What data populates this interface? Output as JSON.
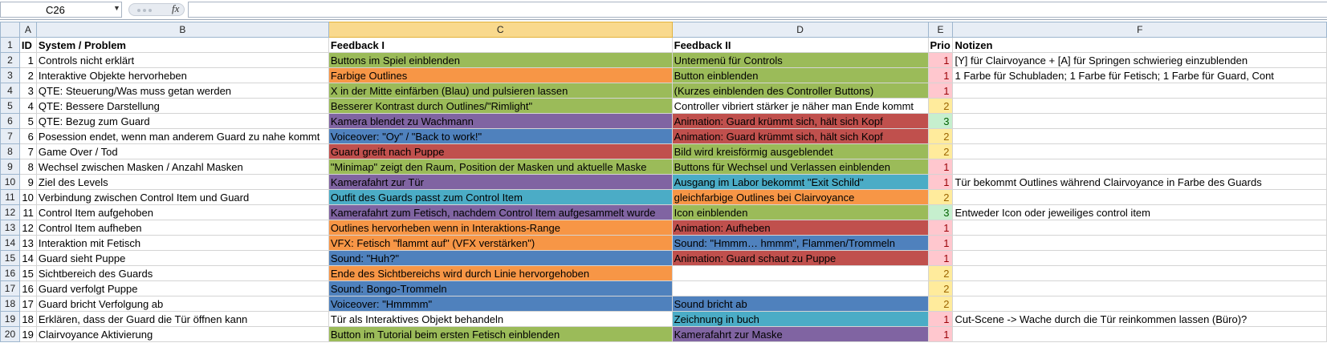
{
  "formula_bar": {
    "cell_ref": "C26",
    "fx_label": "fx",
    "formula": ""
  },
  "columns": [
    "A",
    "B",
    "C",
    "D",
    "E",
    "F"
  ],
  "active_column": "C",
  "header_row": {
    "id": "ID",
    "system": "System / Problem",
    "feedback1": "Feedback I",
    "feedback2": "Feedback II",
    "prio": "Prio",
    "notes": "Notizen"
  },
  "rows": [
    {
      "n": "2",
      "id": "1",
      "system": "Controls nicht erklärt",
      "feedback1": "Buttons im Spiel einblenden",
      "f1_color": "green",
      "feedback2": "Untermenü für Controls",
      "f2_color": "green",
      "prio": "1",
      "notes": "[Y] für Clairvoyance + [A] für Springen schwierieg einzublenden"
    },
    {
      "n": "3",
      "id": "2",
      "system": "Interaktive Objekte hervorheben",
      "feedback1": "Farbige Outlines",
      "f1_color": "orange",
      "feedback2": "Button einblenden",
      "f2_color": "green",
      "prio": "1",
      "notes": "1 Farbe für Schubladen; 1 Farbe für Fetisch; 1 Farbe für Guard, Cont"
    },
    {
      "n": "4",
      "id": "3",
      "system": "QTE: Steuerung/Was muss getan werden",
      "feedback1": "X in der Mitte einfärben (Blau) und pulsieren lassen",
      "f1_color": "green",
      "feedback2": "(Kurzes einblenden des Controller Buttons)",
      "f2_color": "green",
      "prio": "1",
      "notes": ""
    },
    {
      "n": "5",
      "id": "4",
      "system": "QTE: Bessere Darstellung",
      "feedback1": "Besserer Kontrast durch Outlines/\"Rimlight\"",
      "f1_color": "green",
      "feedback2": "Controller vibriert stärker je näher man Ende kommt",
      "f2_color": "",
      "prio": "2",
      "notes": ""
    },
    {
      "n": "6",
      "id": "5",
      "system": "QTE: Bezug zum Guard",
      "feedback1": "Kamera blendet zu Wachmann",
      "f1_color": "purple",
      "feedback2": "Animation: Guard krümmt sich, hält sich Kopf",
      "f2_color": "red",
      "prio": "3",
      "notes": ""
    },
    {
      "n": "7",
      "id": "6",
      "system": "Posession endet, wenn man anderem Guard zu nahe kommt",
      "feedback1": "Voiceover: \"Oy\" / \"Back to work!\"",
      "f1_color": "blue",
      "feedback2": "Animation: Guard krümmt sich, hält sich Kopf",
      "f2_color": "red",
      "prio": "2",
      "notes": ""
    },
    {
      "n": "8",
      "id": "7",
      "system": "Game Over / Tod",
      "feedback1": "Guard greift nach Puppe",
      "f1_color": "red",
      "feedback2": "Bild wird kreisförmig ausgeblendet",
      "f2_color": "green",
      "prio": "2",
      "notes": ""
    },
    {
      "n": "9",
      "id": "8",
      "system": "Wechsel zwischen Masken / Anzahl Masken",
      "feedback1": "\"Minimap\" zeigt den Raum, Position der Masken und aktuelle Maske",
      "f1_color": "green",
      "feedback2": "Buttons für Wechsel und Verlassen einblenden",
      "f2_color": "green",
      "prio": "1",
      "notes": ""
    },
    {
      "n": "10",
      "id": "9",
      "system": "Ziel des Levels",
      "feedback1": "Kamerafahrt zur Tür",
      "f1_color": "purple",
      "feedback2": "Ausgang im Labor bekommt \"Exit Schild\"",
      "f2_color": "teal",
      "prio": "1",
      "notes": "Tür bekommt Outlines während Clairvoyance in Farbe des Guards"
    },
    {
      "n": "11",
      "id": "10",
      "system": "Verbindung zwischen Control Item und Guard",
      "feedback1": "Outfit des Guards passt zum Control Item",
      "f1_color": "teal",
      "feedback2": "gleichfarbige Outlines bei Clairvoyance",
      "f2_color": "orange",
      "prio": "2",
      "notes": ""
    },
    {
      "n": "12",
      "id": "11",
      "system": "Control Item aufgehoben",
      "feedback1": "Kamerafahrt zum Fetisch, nachdem Control Item aufgesammelt wurde",
      "f1_color": "purple",
      "feedback2": "Icon einblenden",
      "f2_color": "green",
      "prio": "3",
      "notes": "Entweder Icon oder jeweiliges control item"
    },
    {
      "n": "13",
      "id": "12",
      "system": "Control Item aufheben",
      "feedback1": "Outlines hervorheben wenn in Interaktions-Range",
      "f1_color": "orange",
      "feedback2": "Animation: Aufheben",
      "f2_color": "red",
      "prio": "1",
      "notes": ""
    },
    {
      "n": "14",
      "id": "13",
      "system": "Interaktion mit Fetisch",
      "feedback1": "VFX: Fetisch \"flammt auf\" (VFX verstärken\")",
      "f1_color": "orange",
      "feedback2": "Sound: \"Hmmm… hmmm\", Flammen/Trommeln",
      "f2_color": "blue",
      "prio": "1",
      "notes": ""
    },
    {
      "n": "15",
      "id": "14",
      "system": "Guard sieht Puppe",
      "feedback1": "Sound: \"Huh?\"",
      "f1_color": "blue",
      "feedback2": "Animation: Guard schaut zu Puppe",
      "f2_color": "red",
      "prio": "1",
      "notes": ""
    },
    {
      "n": "16",
      "id": "15",
      "system": "Sichtbereich des Guards",
      "feedback1": "Ende des Sichtbereichs wird durch Linie hervorgehoben",
      "f1_color": "orange",
      "feedback2": "",
      "f2_color": "",
      "prio": "2",
      "notes": ""
    },
    {
      "n": "17",
      "id": "16",
      "system": "Guard verfolgt Puppe",
      "feedback1": "Sound: Bongo-Trommeln",
      "f1_color": "blue",
      "feedback2": "",
      "f2_color": "",
      "prio": "2",
      "notes": ""
    },
    {
      "n": "18",
      "id": "17",
      "system": "Guard bricht Verfolgung ab",
      "feedback1": "Voiceover: \"Hmmmm\"",
      "f1_color": "blue",
      "feedback2": "Sound bricht ab",
      "f2_color": "blue",
      "prio": "2",
      "notes": ""
    },
    {
      "n": "19",
      "id": "18",
      "system": "Erklären, dass der Guard die Tür öffnen kann",
      "feedback1": "Tür als Interaktives Objekt behandeln",
      "f1_color": "",
      "feedback2": "Zeichnung in buch",
      "f2_color": "teal",
      "prio": "1",
      "notes": "Cut-Scene -> Wache durch die Tür reinkommen lassen (Büro)?"
    },
    {
      "n": "20",
      "id": "19",
      "system": "Clairvoyance Aktivierung",
      "feedback1": "Button im Tutorial beim ersten Fetisch einblenden",
      "f1_color": "green",
      "feedback2": "Kamerafahrt zur Maske",
      "f2_color": "purple",
      "prio": "1",
      "notes": ""
    }
  ],
  "colors": {
    "green": "#9bbb59",
    "orange": "#f79646",
    "purple": "#8064a2",
    "blue": "#4f81bd",
    "red": "#c0504d",
    "teal": "#4bacc6",
    "prio1": "#ffc7ce",
    "prio2": "#ffeb9c",
    "prio3": "#c6efce"
  }
}
